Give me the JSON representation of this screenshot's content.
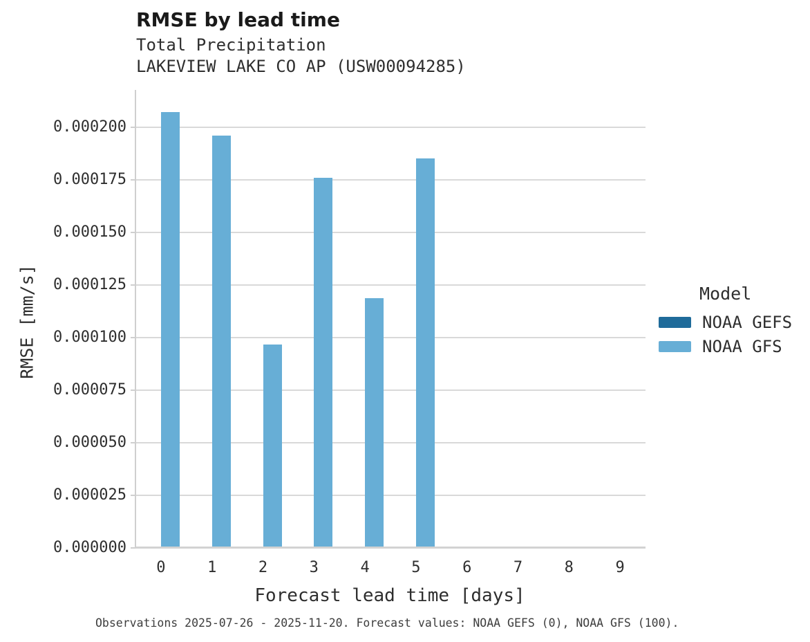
{
  "title": "RMSE by lead time",
  "subtitle": "Total Precipitation\nLAKEVIEW LAKE CO AP (USW00094285)",
  "footer": "Observations 2025-07-26 - 2025-11-20. Forecast values: NOAA GEFS (0), NOAA GFS (100).",
  "legend": {
    "title": "Model",
    "items": [
      {
        "label": "NOAA GEFS",
        "color": "#1f6b9a"
      },
      {
        "label": "NOAA GFS",
        "color": "#67aed6"
      }
    ]
  },
  "colors": {
    "grid": "#d9d9d9",
    "spine": "#cfcfcf",
    "baseline": "#d2d2d2",
    "bar_gefs": "#1f6b9a",
    "bar_gfs": "#67aed6",
    "text": "#2e2e2e",
    "title_text": "#1a1a1a",
    "footer_text": "#3d3d3d"
  },
  "chart_data": {
    "type": "bar",
    "title": "RMSE by lead time",
    "subtitle": [
      "Total Precipitation",
      "LAKEVIEW LAKE CO AP (USW00094285)"
    ],
    "xlabel": "Forecast lead time [days]",
    "ylabel": "RMSE [mm/s]",
    "categories": [
      0,
      1,
      2,
      3,
      4,
      5,
      6,
      7,
      8,
      9
    ],
    "series": [
      {
        "name": "NOAA GEFS",
        "color": "#1f6b9a",
        "values": [
          null,
          null,
          null,
          null,
          null,
          null,
          null,
          null,
          null,
          null
        ]
      },
      {
        "name": "NOAA GFS",
        "color": "#67aed6",
        "values": [
          0.000207,
          0.000196,
          9.66e-05,
          0.0001758,
          0.0001188,
          0.000185,
          null,
          null,
          null,
          null
        ]
      }
    ],
    "ylim": [
      0,
      0.0002176
    ],
    "yticks": [
      {
        "value": 0.0,
        "label": "0.000000"
      },
      {
        "value": 2.5e-05,
        "label": "0.000025"
      },
      {
        "value": 5e-05,
        "label": "0.000050"
      },
      {
        "value": 7.5e-05,
        "label": "0.000075"
      },
      {
        "value": 0.0001,
        "label": "0.000100"
      },
      {
        "value": 0.000125,
        "label": "0.000125"
      },
      {
        "value": 0.00015,
        "label": "0.000150"
      },
      {
        "value": 0.000175,
        "label": "0.000175"
      },
      {
        "value": 0.0002,
        "label": "0.000200"
      }
    ],
    "grid": true,
    "legend_position": "right",
    "legend_title": "Model"
  }
}
